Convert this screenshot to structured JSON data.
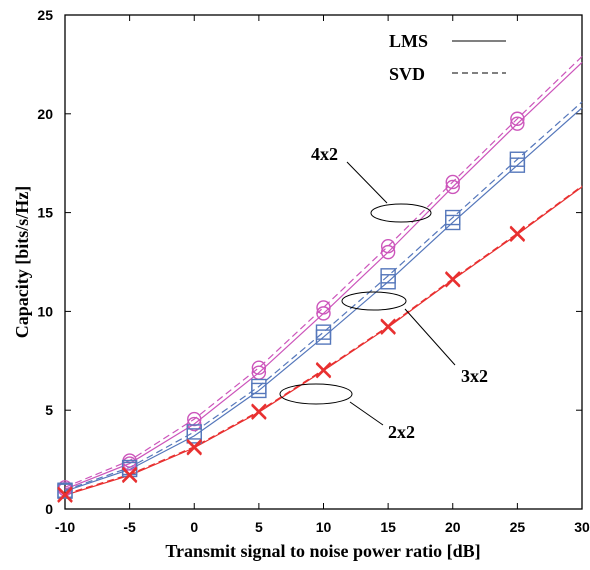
{
  "chart_data": {
    "type": "line",
    "xlabel": "Transmit signal to noise power ratio [dB]",
    "ylabel": "Capacity [bits/s/Hz]",
    "xlim": [
      -10,
      30
    ],
    "ylim": [
      0,
      25
    ],
    "xticks": [
      -10,
      -5,
      0,
      5,
      10,
      15,
      20,
      25,
      30
    ],
    "yticks": [
      0,
      5,
      10,
      15,
      20,
      25
    ],
    "x": [
      -10,
      -5,
      0,
      5,
      10,
      15,
      20,
      25,
      30
    ],
    "grid": false,
    "legend": {
      "placement": "top-right",
      "entries": [
        {
          "label": "LMS",
          "style": "solid"
        },
        {
          "label": "SVD",
          "style": "dashed"
        }
      ]
    },
    "annotations": [
      {
        "text": "4x2",
        "target": "4x2"
      },
      {
        "text": "3x2",
        "target": "3x2"
      },
      {
        "text": "2x2",
        "target": "2x2"
      }
    ],
    "series": [
      {
        "group": "4x2",
        "method": "LMS",
        "style": "solid",
        "color": "#cc55bb",
        "marker": "circle",
        "values": [
          1.0,
          2.3,
          4.3,
          6.9,
          9.9,
          13.0,
          16.3,
          19.5,
          22.6
        ],
        "marker_x": [
          -10,
          -5,
          0,
          5,
          10,
          15,
          20,
          25
        ]
      },
      {
        "group": "4x2",
        "method": "SVD",
        "style": "dashed",
        "color": "#cc55bb",
        "marker": "circle",
        "values": [
          1.1,
          2.45,
          4.55,
          7.15,
          10.2,
          13.3,
          16.55,
          19.75,
          22.9
        ],
        "marker_x": [
          -10,
          -5,
          0,
          5,
          10,
          15,
          20,
          25
        ]
      },
      {
        "group": "3x2",
        "method": "LMS",
        "style": "solid",
        "color": "#5577bb",
        "marker": "square",
        "values": [
          0.9,
          2.0,
          3.7,
          6.0,
          8.7,
          11.5,
          14.5,
          17.4,
          20.3
        ],
        "marker_x": [
          -10,
          -5,
          0,
          5,
          10,
          15,
          20,
          25
        ]
      },
      {
        "group": "3x2",
        "method": "SVD",
        "style": "dashed",
        "color": "#5577bb",
        "marker": "square",
        "values": [
          0.95,
          2.1,
          3.9,
          6.2,
          8.95,
          11.8,
          14.75,
          17.7,
          20.6
        ],
        "marker_x": [
          -10,
          -5,
          0,
          5,
          10,
          15,
          20,
          25
        ]
      },
      {
        "group": "2x2",
        "method": "LMS",
        "style": "solid",
        "color": "#e83030",
        "marker": "x",
        "values": [
          0.7,
          1.7,
          3.1,
          4.9,
          7.0,
          9.2,
          11.6,
          13.9,
          16.3
        ],
        "marker_x": [
          -10,
          -5,
          0,
          5,
          10,
          15,
          20,
          25
        ]
      },
      {
        "group": "2x2",
        "method": "SVD",
        "style": "dashed",
        "color": "#e83030",
        "marker": "x",
        "values": [
          0.75,
          1.75,
          3.15,
          4.95,
          7.05,
          9.25,
          11.65,
          13.95,
          16.35
        ],
        "marker_x": [
          -10,
          -5,
          0,
          5,
          10,
          15,
          20,
          25
        ]
      }
    ]
  }
}
